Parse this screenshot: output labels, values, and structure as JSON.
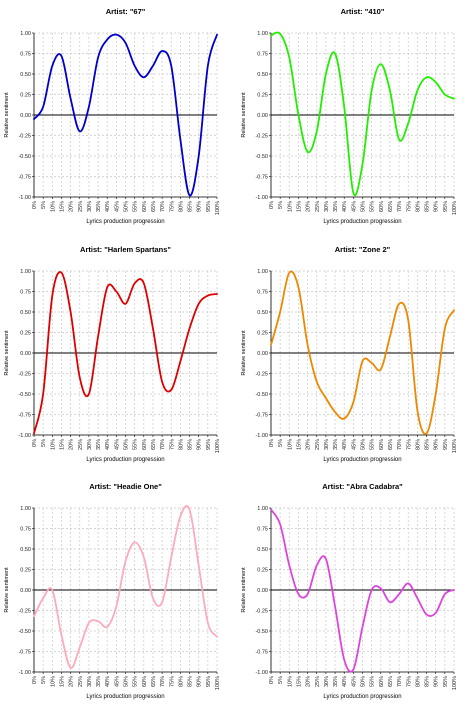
{
  "chart_data": [
    {
      "type": "line",
      "title": "Artist: \"67\"",
      "xlabel": "Lyrics production progression",
      "ylabel": "Relative sentiment",
      "color": "#0000cc",
      "xlim": [
        0,
        100
      ],
      "ylim": [
        -1.0,
        1.0
      ],
      "grid": true,
      "x_ticks": [
        "0%",
        "5%",
        "10%",
        "15%",
        "20%",
        "25%",
        "30%",
        "35%",
        "40%",
        "45%",
        "50%",
        "55%",
        "60%",
        "65%",
        "70%",
        "75%",
        "80%",
        "85%",
        "90%",
        "95%",
        "100%"
      ],
      "y_ticks": [
        "1.00",
        "0.75",
        "0.50",
        "0.25",
        "0.00",
        "-0.25",
        "-0.50",
        "-0.75",
        "-1.00"
      ],
      "x": [
        0,
        5,
        10,
        15,
        20,
        25,
        30,
        35,
        40,
        45,
        50,
        55,
        60,
        65,
        70,
        75,
        80,
        85,
        90,
        95,
        100
      ],
      "y": [
        -0.05,
        0.1,
        0.6,
        0.72,
        0.2,
        -0.2,
        0.1,
        0.7,
        0.92,
        0.98,
        0.88,
        0.6,
        0.46,
        0.6,
        0.78,
        0.6,
        -0.3,
        -0.98,
        -0.5,
        0.6,
        0.98
      ]
    },
    {
      "type": "line",
      "title": "Artist: \"410\"",
      "xlabel": "Lyrics production progression",
      "ylabel": "Relative sentiment",
      "color": "#22ee00",
      "xlim": [
        0,
        100
      ],
      "ylim": [
        -1.0,
        1.0
      ],
      "grid": true,
      "x_ticks": [
        "0%",
        "5%",
        "10%",
        "15%",
        "20%",
        "25%",
        "30%",
        "35%",
        "40%",
        "45%",
        "50%",
        "55%",
        "60%",
        "65%",
        "70%",
        "75%",
        "80%",
        "85%",
        "90%",
        "95%",
        "100%"
      ],
      "y_ticks": [
        "1.00",
        "0.75",
        "0.50",
        "0.25",
        "0.00",
        "-0.25",
        "-0.50",
        "-0.75",
        "-1.00"
      ],
      "x": [
        0,
        5,
        10,
        15,
        20,
        25,
        30,
        35,
        40,
        45,
        50,
        55,
        60,
        65,
        70,
        75,
        80,
        85,
        90,
        95,
        100
      ],
      "y": [
        0.97,
        0.99,
        0.7,
        0.0,
        -0.45,
        -0.2,
        0.5,
        0.75,
        0.1,
        -0.95,
        -0.6,
        0.3,
        0.62,
        0.3,
        -0.3,
        -0.1,
        0.3,
        0.46,
        0.4,
        0.25,
        0.2
      ]
    },
    {
      "type": "line",
      "title": "Artist: \"Harlem Spartans\"",
      "xlabel": "Lyrics production progression",
      "ylabel": "Relative sentiment",
      "color": "#dd0000",
      "xlim": [
        0,
        100
      ],
      "ylim": [
        -1.0,
        1.0
      ],
      "grid": true,
      "x_ticks": [
        "0%",
        "5%",
        "10%",
        "15%",
        "20%",
        "25%",
        "30%",
        "35%",
        "40%",
        "45%",
        "50%",
        "55%",
        "60%",
        "65%",
        "70%",
        "75%",
        "80%",
        "85%",
        "90%",
        "95%",
        "100%"
      ],
      "y_ticks": [
        "1.00",
        "0.75",
        "0.50",
        "0.25",
        "0.00",
        "-0.25",
        "-0.50",
        "-0.75",
        "-1.00"
      ],
      "x": [
        0,
        5,
        10,
        15,
        20,
        25,
        30,
        35,
        40,
        45,
        50,
        55,
        60,
        65,
        70,
        75,
        80,
        85,
        90,
        95,
        100
      ],
      "y": [
        -0.98,
        -0.5,
        0.7,
        0.98,
        0.5,
        -0.3,
        -0.5,
        0.2,
        0.8,
        0.75,
        0.6,
        0.85,
        0.85,
        0.3,
        -0.35,
        -0.45,
        -0.1,
        0.3,
        0.6,
        0.7,
        0.72
      ]
    },
    {
      "type": "line",
      "title": "Artist: \"Zone 2\"",
      "xlabel": "Lyrics production progression",
      "ylabel": "Relative sentiment",
      "color": "#ee8800",
      "xlim": [
        0,
        100
      ],
      "ylim": [
        -1.0,
        1.0
      ],
      "grid": true,
      "x_ticks": [
        "0%",
        "5%",
        "10%",
        "15%",
        "20%",
        "25%",
        "30%",
        "35%",
        "40%",
        "45%",
        "50%",
        "55%",
        "60%",
        "65%",
        "70%",
        "75%",
        "80%",
        "85%",
        "90%",
        "95%",
        "100%"
      ],
      "y_ticks": [
        "1.00",
        "0.75",
        "0.50",
        "0.25",
        "0.00",
        "-0.25",
        "-0.50",
        "-0.75",
        "-1.00"
      ],
      "x": [
        0,
        5,
        10,
        15,
        20,
        25,
        30,
        35,
        40,
        45,
        50,
        55,
        60,
        65,
        70,
        75,
        80,
        85,
        90,
        95,
        100
      ],
      "y": [
        0.1,
        0.5,
        0.98,
        0.8,
        0.1,
        -0.35,
        -0.55,
        -0.72,
        -0.8,
        -0.6,
        -0.1,
        -0.12,
        -0.2,
        0.2,
        0.6,
        0.4,
        -0.7,
        -0.98,
        -0.5,
        0.3,
        0.52
      ]
    },
    {
      "type": "line",
      "title": "Artist: \"Headie One\"",
      "xlabel": "Lyrics production progression",
      "ylabel": "Relative sentiment",
      "color": "#ffaabb",
      "xlim": [
        0,
        100
      ],
      "ylim": [
        -1.0,
        1.0
      ],
      "grid": true,
      "x_ticks": [
        "0%",
        "5%",
        "10%",
        "15%",
        "20%",
        "25%",
        "30%",
        "35%",
        "40%",
        "45%",
        "50%",
        "55%",
        "60%",
        "65%",
        "70%",
        "75%",
        "80%",
        "85%",
        "90%",
        "95%",
        "100%"
      ],
      "y_ticks": [
        "1.00",
        "0.75",
        "0.50",
        "0.25",
        "0.00",
        "-0.25",
        "-0.50",
        "-0.75",
        "-1.00"
      ],
      "x": [
        0,
        5,
        10,
        15,
        20,
        25,
        30,
        35,
        40,
        45,
        50,
        55,
        60,
        65,
        70,
        75,
        80,
        85,
        90,
        95,
        100
      ],
      "y": [
        -0.32,
        -0.1,
        0.0,
        -0.55,
        -0.95,
        -0.7,
        -0.4,
        -0.38,
        -0.45,
        -0.2,
        0.35,
        0.58,
        0.4,
        -0.1,
        -0.15,
        0.4,
        0.9,
        0.98,
        0.3,
        -0.4,
        -0.57
      ]
    },
    {
      "type": "line",
      "title": "Artist: \"Abra Cadabra\"",
      "xlabel": "Lyrics production progression",
      "ylabel": "Relative sentiment",
      "color": "#dd44dd",
      "xlim": [
        0,
        100
      ],
      "ylim": [
        -1.0,
        1.0
      ],
      "grid": true,
      "x_ticks": [
        "0%",
        "5%",
        "10%",
        "15%",
        "20%",
        "25%",
        "30%",
        "35%",
        "40%",
        "45%",
        "50%",
        "55%",
        "60%",
        "65%",
        "70%",
        "75%",
        "80%",
        "85%",
        "90%",
        "95%",
        "100%"
      ],
      "y_ticks": [
        "1.00",
        "0.75",
        "0.50",
        "0.25",
        "0.00",
        "-0.25",
        "-0.50",
        "-0.75",
        "-1.00"
      ],
      "x": [
        0,
        5,
        10,
        15,
        20,
        25,
        30,
        35,
        40,
        45,
        50,
        55,
        60,
        65,
        70,
        75,
        80,
        85,
        90,
        95,
        100
      ],
      "y": [
        0.98,
        0.8,
        0.3,
        -0.05,
        -0.05,
        0.3,
        0.38,
        -0.2,
        -0.85,
        -0.97,
        -0.45,
        0.0,
        0.02,
        -0.15,
        -0.05,
        0.08,
        -0.1,
        -0.3,
        -0.28,
        -0.05,
        0.0
      ]
    }
  ]
}
